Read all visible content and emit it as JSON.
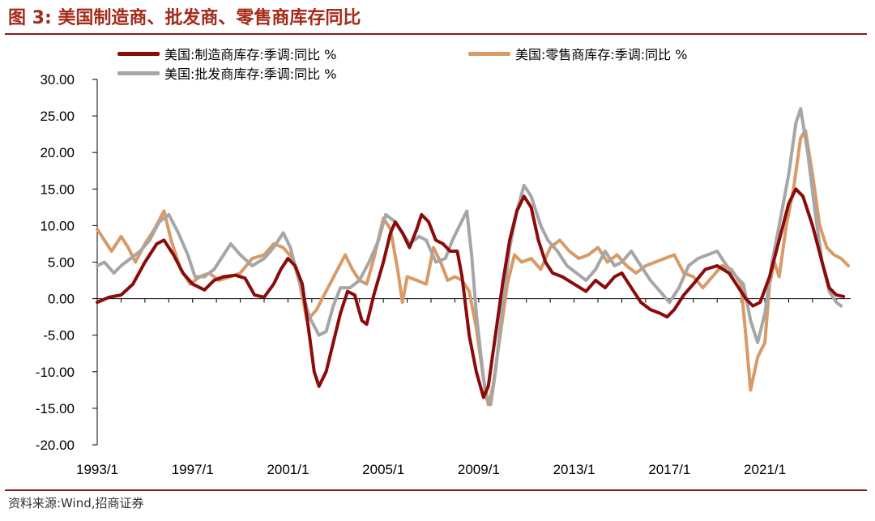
{
  "figure": {
    "title": "图 3:  美国制造商、批发商、零售商库存同比",
    "source": "资料来源:Wind,招商证券"
  },
  "chart_data": {
    "type": "line",
    "title": "图 3:  美国制造商、批发商、零售商库存同比",
    "xlabel": "",
    "ylabel": "",
    "ylim": [
      -20,
      30
    ],
    "xlim": [
      1993.0,
      2024.6
    ],
    "yticks": [
      30,
      25,
      20,
      15,
      10,
      5,
      0,
      -5,
      -10,
      -15,
      -20
    ],
    "ytick_labels": [
      "30.00",
      "25.00",
      "20.00",
      "15.00",
      "10.00",
      "5.00",
      "0.00",
      "-5.00",
      "-10.00",
      "-15.00",
      "-20.00"
    ],
    "xticks": [
      1993,
      1997,
      2001,
      2005,
      2009,
      2013,
      2017,
      2021
    ],
    "xtick_labels": [
      "1993/1",
      "1997/1",
      "2001/1",
      "2005/1",
      "2009/1",
      "2013/1",
      "2017/1",
      "2021/1"
    ],
    "legend_position": "top",
    "series": [
      {
        "name": "美国:制造商库存:季调:同比 %",
        "color": "#8b0a0a",
        "points": [
          [
            1993.0,
            -0.5
          ],
          [
            1993.5,
            0.2
          ],
          [
            1994.0,
            0.5
          ],
          [
            1994.5,
            2.0
          ],
          [
            1995.0,
            5.0
          ],
          [
            1995.5,
            7.5
          ],
          [
            1995.8,
            8.0
          ],
          [
            1996.2,
            6.0
          ],
          [
            1996.6,
            3.5
          ],
          [
            1997.0,
            2.0
          ],
          [
            1997.5,
            1.2
          ],
          [
            1997.9,
            2.5
          ],
          [
            1998.3,
            3.0
          ],
          [
            1998.8,
            3.2
          ],
          [
            1999.2,
            2.8
          ],
          [
            1999.6,
            0.5
          ],
          [
            2000.0,
            0.2
          ],
          [
            2000.4,
            2.0
          ],
          [
            2000.7,
            4.0
          ],
          [
            2001.0,
            5.5
          ],
          [
            2001.3,
            4.5
          ],
          [
            2001.6,
            2.0
          ],
          [
            2001.9,
            -5.0
          ],
          [
            2002.1,
            -10.0
          ],
          [
            2002.3,
            -12.0
          ],
          [
            2002.6,
            -10.0
          ],
          [
            2002.9,
            -6.0
          ],
          [
            2003.2,
            -2.0
          ],
          [
            2003.5,
            1.0
          ],
          [
            2003.8,
            0.5
          ],
          [
            2004.1,
            -3.0
          ],
          [
            2004.3,
            -3.5
          ],
          [
            2004.6,
            0.5
          ],
          [
            2005.0,
            5.0
          ],
          [
            2005.3,
            9.0
          ],
          [
            2005.5,
            10.5
          ],
          [
            2005.8,
            9.0
          ],
          [
            2006.1,
            7.0
          ],
          [
            2006.4,
            9.5
          ],
          [
            2006.6,
            11.5
          ],
          [
            2006.9,
            10.5
          ],
          [
            2007.2,
            8.0
          ],
          [
            2007.5,
            7.5
          ],
          [
            2007.8,
            6.5
          ],
          [
            2008.1,
            6.5
          ],
          [
            2008.3,
            3.0
          ],
          [
            2008.6,
            -5.0
          ],
          [
            2008.9,
            -10.0
          ],
          [
            2009.2,
            -13.5
          ],
          [
            2009.4,
            -12.0
          ],
          [
            2009.7,
            -5.0
          ],
          [
            2010.0,
            2.0
          ],
          [
            2010.3,
            8.0
          ],
          [
            2010.6,
            12.0
          ],
          [
            2010.9,
            14.0
          ],
          [
            2011.2,
            12.5
          ],
          [
            2011.5,
            8.0
          ],
          [
            2011.8,
            5.0
          ],
          [
            2012.1,
            3.5
          ],
          [
            2012.5,
            3.0
          ],
          [
            2013.0,
            2.0
          ],
          [
            2013.5,
            1.0
          ],
          [
            2013.9,
            2.5
          ],
          [
            2014.3,
            1.5
          ],
          [
            2014.7,
            3.0
          ],
          [
            2015.0,
            3.5
          ],
          [
            2015.4,
            1.5
          ],
          [
            2015.8,
            -0.5
          ],
          [
            2016.2,
            -1.5
          ],
          [
            2016.6,
            -2.0
          ],
          [
            2016.9,
            -2.5
          ],
          [
            2017.2,
            -1.5
          ],
          [
            2017.6,
            0.5
          ],
          [
            2018.0,
            2.0
          ],
          [
            2018.5,
            4.0
          ],
          [
            2019.0,
            4.5
          ],
          [
            2019.5,
            3.5
          ],
          [
            2019.9,
            1.5
          ],
          [
            2020.2,
            0.0
          ],
          [
            2020.5,
            -1.0
          ],
          [
            2020.8,
            -0.5
          ],
          [
            2021.2,
            3.0
          ],
          [
            2021.6,
            8.0
          ],
          [
            2022.0,
            13.0
          ],
          [
            2022.3,
            15.0
          ],
          [
            2022.6,
            14.0
          ],
          [
            2023.0,
            10.0
          ],
          [
            2023.4,
            5.0
          ],
          [
            2023.7,
            1.5
          ],
          [
            2024.0,
            0.5
          ],
          [
            2024.3,
            0.3
          ]
        ]
      },
      {
        "name": "美国:批发商库存:季调:同比 %",
        "color": "#a6a6a6",
        "points": [
          [
            1993.0,
            4.5
          ],
          [
            1993.3,
            5.0
          ],
          [
            1993.7,
            3.5
          ],
          [
            1994.0,
            4.5
          ],
          [
            1994.4,
            5.5
          ],
          [
            1994.8,
            6.5
          ],
          [
            1995.2,
            8.0
          ],
          [
            1995.6,
            10.5
          ],
          [
            1996.0,
            11.5
          ],
          [
            1996.4,
            9.0
          ],
          [
            1996.8,
            6.0
          ],
          [
            1997.1,
            3.0
          ],
          [
            1997.5,
            3.0
          ],
          [
            1997.9,
            4.0
          ],
          [
            1998.3,
            6.0
          ],
          [
            1998.6,
            7.5
          ],
          [
            1999.0,
            6.0
          ],
          [
            1999.5,
            4.5
          ],
          [
            2000.0,
            5.5
          ],
          [
            2000.4,
            7.0
          ],
          [
            2000.8,
            9.0
          ],
          [
            2001.1,
            7.0
          ],
          [
            2001.5,
            2.0
          ],
          [
            2001.9,
            -2.5
          ],
          [
            2002.3,
            -5.0
          ],
          [
            2002.6,
            -4.5
          ],
          [
            2002.9,
            -1.0
          ],
          [
            2003.2,
            1.5
          ],
          [
            2003.6,
            1.5
          ],
          [
            2004.0,
            2.5
          ],
          [
            2004.4,
            5.0
          ],
          [
            2004.8,
            8.0
          ],
          [
            2005.1,
            11.5
          ],
          [
            2005.5,
            10.5
          ],
          [
            2005.8,
            9.0
          ],
          [
            2006.1,
            7.5
          ],
          [
            2006.5,
            8.5
          ],
          [
            2006.8,
            8.0
          ],
          [
            2007.2,
            5.0
          ],
          [
            2007.6,
            5.5
          ],
          [
            2007.9,
            8.0
          ],
          [
            2008.2,
            10.0
          ],
          [
            2008.5,
            12.0
          ],
          [
            2008.7,
            6.0
          ],
          [
            2008.9,
            -2.0
          ],
          [
            2009.1,
            -8.0
          ],
          [
            2009.3,
            -13.5
          ],
          [
            2009.5,
            -14.5
          ],
          [
            2009.7,
            -10.0
          ],
          [
            2010.0,
            -1.0
          ],
          [
            2010.3,
            7.0
          ],
          [
            2010.6,
            12.0
          ],
          [
            2010.9,
            15.5
          ],
          [
            2011.2,
            14.0
          ],
          [
            2011.6,
            10.0
          ],
          [
            2011.9,
            8.0
          ],
          [
            2012.3,
            6.5
          ],
          [
            2012.7,
            4.5
          ],
          [
            2013.1,
            3.5
          ],
          [
            2013.5,
            2.5
          ],
          [
            2013.9,
            4.0
          ],
          [
            2014.3,
            6.5
          ],
          [
            2014.7,
            4.5
          ],
          [
            2015.0,
            5.0
          ],
          [
            2015.4,
            6.5
          ],
          [
            2015.8,
            4.5
          ],
          [
            2016.2,
            2.5
          ],
          [
            2016.6,
            1.0
          ],
          [
            2017.0,
            -0.5
          ],
          [
            2017.4,
            1.5
          ],
          [
            2017.8,
            4.5
          ],
          [
            2018.2,
            5.5
          ],
          [
            2018.6,
            6.0
          ],
          [
            2019.0,
            6.5
          ],
          [
            2019.4,
            4.5
          ],
          [
            2019.8,
            3.0
          ],
          [
            2020.1,
            2.0
          ],
          [
            2020.4,
            -3.0
          ],
          [
            2020.7,
            -6.0
          ],
          [
            2021.0,
            -2.0
          ],
          [
            2021.3,
            5.0
          ],
          [
            2021.6,
            10.0
          ],
          [
            2022.0,
            17.0
          ],
          [
            2022.3,
            24.0
          ],
          [
            2022.5,
            26.0
          ],
          [
            2022.8,
            20.0
          ],
          [
            2023.1,
            12.0
          ],
          [
            2023.4,
            5.0
          ],
          [
            2023.7,
            1.0
          ],
          [
            2024.0,
            -0.5
          ],
          [
            2024.2,
            -1.0
          ]
        ]
      },
      {
        "name": "美国:零售商库存:季调:同比 %",
        "color": "#d89a66",
        "points": [
          [
            1993.0,
            9.5
          ],
          [
            1993.3,
            8.0
          ],
          [
            1993.6,
            6.5
          ],
          [
            1994.0,
            8.5
          ],
          [
            1994.3,
            7.0
          ],
          [
            1994.6,
            5.0
          ],
          [
            1995.0,
            7.5
          ],
          [
            1995.4,
            9.5
          ],
          [
            1995.8,
            12.0
          ],
          [
            1996.1,
            8.0
          ],
          [
            1996.5,
            4.0
          ],
          [
            1996.9,
            2.0
          ],
          [
            1997.3,
            3.0
          ],
          [
            1997.7,
            3.5
          ],
          [
            1998.1,
            2.5
          ],
          [
            1998.6,
            3.0
          ],
          [
            1999.0,
            3.5
          ],
          [
            1999.5,
            5.5
          ],
          [
            2000.0,
            6.0
          ],
          [
            2000.4,
            7.5
          ],
          [
            2000.8,
            7.0
          ],
          [
            2001.2,
            5.5
          ],
          [
            2001.5,
            2.0
          ],
          [
            2001.8,
            -3.0
          ],
          [
            2002.2,
            -1.5
          ],
          [
            2002.6,
            1.0
          ],
          [
            2003.0,
            3.5
          ],
          [
            2003.4,
            6.0
          ],
          [
            2003.7,
            4.0
          ],
          [
            2004.0,
            2.5
          ],
          [
            2004.3,
            2.0
          ],
          [
            2004.6,
            5.5
          ],
          [
            2005.0,
            11.0
          ],
          [
            2005.3,
            9.5
          ],
          [
            2005.6,
            4.0
          ],
          [
            2005.8,
            -0.5
          ],
          [
            2006.0,
            3.0
          ],
          [
            2006.4,
            2.5
          ],
          [
            2006.8,
            2.0
          ],
          [
            2007.1,
            7.0
          ],
          [
            2007.4,
            5.0
          ],
          [
            2007.7,
            2.5
          ],
          [
            2008.0,
            3.0
          ],
          [
            2008.3,
            2.5
          ],
          [
            2008.6,
            1.0
          ],
          [
            2008.9,
            -4.0
          ],
          [
            2009.2,
            -11.0
          ],
          [
            2009.4,
            -14.5
          ],
          [
            2009.6,
            -12.0
          ],
          [
            2009.9,
            -5.0
          ],
          [
            2010.2,
            2.0
          ],
          [
            2010.5,
            6.0
          ],
          [
            2010.8,
            5.0
          ],
          [
            2011.2,
            5.5
          ],
          [
            2011.6,
            4.0
          ],
          [
            2012.0,
            7.0
          ],
          [
            2012.4,
            8.0
          ],
          [
            2012.8,
            6.5
          ],
          [
            2013.2,
            5.5
          ],
          [
            2013.6,
            6.0
          ],
          [
            2014.0,
            7.0
          ],
          [
            2014.4,
            5.0
          ],
          [
            2014.8,
            6.0
          ],
          [
            2015.2,
            4.5
          ],
          [
            2015.6,
            3.5
          ],
          [
            2016.0,
            4.5
          ],
          [
            2016.4,
            5.0
          ],
          [
            2016.8,
            5.5
          ],
          [
            2017.2,
            6.0
          ],
          [
            2017.6,
            3.5
          ],
          [
            2018.0,
            3.0
          ],
          [
            2018.4,
            1.5
          ],
          [
            2018.8,
            3.0
          ],
          [
            2019.2,
            4.5
          ],
          [
            2019.6,
            4.0
          ],
          [
            2020.0,
            2.0
          ],
          [
            2020.2,
            -5.0
          ],
          [
            2020.4,
            -12.5
          ],
          [
            2020.7,
            -8.0
          ],
          [
            2021.0,
            -6.0
          ],
          [
            2021.2,
            2.0
          ],
          [
            2021.4,
            5.0
          ],
          [
            2021.6,
            3.0
          ],
          [
            2021.9,
            10.0
          ],
          [
            2022.2,
            15.0
          ],
          [
            2022.5,
            22.0
          ],
          [
            2022.7,
            23.0
          ],
          [
            2023.0,
            17.0
          ],
          [
            2023.3,
            10.0
          ],
          [
            2023.6,
            7.0
          ],
          [
            2023.9,
            6.0
          ],
          [
            2024.2,
            5.5
          ],
          [
            2024.5,
            4.5
          ]
        ]
      }
    ]
  }
}
